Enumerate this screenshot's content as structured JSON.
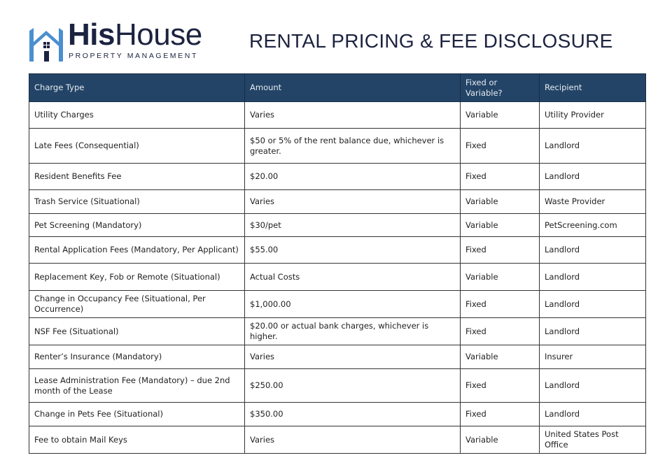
{
  "logo": {
    "name_bold": "His",
    "name_light": "House",
    "tagline": "PROPERTY MANAGEMENT",
    "colors": {
      "house": "#4a8fd0",
      "text": "#1c2340"
    }
  },
  "title": "RENTAL PRICING & FEE DISCLOSURE",
  "table": {
    "header_color": "#234466",
    "headers": [
      "Charge Type",
      "Amount",
      "Fixed or Variable?",
      "Recipient"
    ],
    "rows": [
      [
        "Utility Charges",
        "Varies",
        "Variable",
        "Utility Provider"
      ],
      [
        "Late Fees (Consequential)",
        "$50 or 5% of the rent balance due, whichever is greater.",
        "Fixed",
        "Landlord"
      ],
      [
        "Resident Benefits Fee",
        "$20.00",
        "Fixed",
        "Landlord"
      ],
      [
        "Trash Service (Situational)",
        "Varies",
        "Variable",
        "Waste Provider"
      ],
      [
        "Pet Screening (Mandatory)",
        "$30/pet",
        "Variable",
        "PetScreening.com"
      ],
      [
        "Rental Application Fees (Mandatory, Per Applicant)",
        "$55.00",
        "Fixed",
        "Landlord"
      ],
      [
        "Replacement Key, Fob or Remote (Situational)",
        "Actual Costs",
        "Variable",
        "Landlord"
      ],
      [
        "Change in Occupancy Fee (Situational, Per Occurrence)",
        "$1,000.00",
        "Fixed",
        "Landlord"
      ],
      [
        "NSF Fee (Situational)",
        "$20.00 or actual bank charges, whichever is higher.",
        "Fixed",
        "Landlord"
      ],
      [
        "Renter’s Insurance (Mandatory)",
        "Varies",
        "Variable",
        "Insurer"
      ],
      [
        "Lease Administration Fee (Mandatory) – due 2nd month of the Lease",
        "$250.00",
        "Fixed",
        "Landlord"
      ],
      [
        "Change in Pets Fee (Situational)",
        "$350.00",
        "Fixed",
        "Landlord"
      ],
      [
        "Fee to obtain Mail Keys",
        "Varies",
        "Variable",
        "United States Post Office"
      ]
    ]
  }
}
